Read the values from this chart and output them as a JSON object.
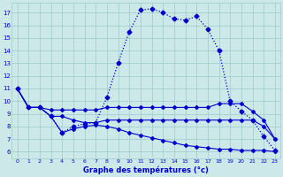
{
  "title": "Graphe des températures (°c)",
  "bg_color": "#cce8e8",
  "grid_color": "#99cccc",
  "line_color": "#0000cc",
  "main_x": [
    0,
    1,
    2,
    3,
    4,
    5,
    6,
    7,
    8,
    9,
    10,
    11,
    12,
    13,
    14,
    15,
    16,
    17,
    18,
    19,
    20,
    21,
    22,
    23
  ],
  "main_y": [
    11.0,
    9.5,
    9.5,
    8.8,
    7.5,
    8.0,
    8.2,
    8.3,
    10.3,
    13.0,
    15.5,
    17.2,
    17.3,
    17.0,
    16.5,
    16.4,
    16.7,
    15.7,
    14.0,
    10.0,
    9.2,
    8.5,
    7.2,
    6.1
  ],
  "line2_x": [
    0,
    1,
    2,
    3,
    4,
    5,
    6,
    7,
    8,
    9,
    10,
    11,
    12,
    13,
    14,
    15,
    16,
    17,
    18,
    19,
    20,
    21,
    22,
    23
  ],
  "line2_y": [
    11.0,
    9.5,
    9.5,
    9.3,
    9.3,
    9.3,
    9.3,
    9.3,
    9.5,
    9.5,
    9.5,
    9.5,
    9.5,
    9.5,
    9.5,
    9.5,
    9.5,
    9.5,
    9.8,
    9.8,
    9.8,
    9.2,
    8.5,
    7.0
  ],
  "line3_x": [
    0,
    1,
    2,
    3,
    4,
    5,
    6,
    7,
    8,
    9,
    10,
    11,
    12,
    13,
    14,
    15,
    16,
    17,
    18,
    19,
    20,
    21,
    22,
    23
  ],
  "line3_y": [
    11.0,
    9.5,
    9.5,
    8.8,
    8.8,
    8.5,
    8.3,
    8.3,
    8.5,
    8.5,
    8.5,
    8.5,
    8.5,
    8.5,
    8.5,
    8.5,
    8.5,
    8.5,
    8.5,
    8.5,
    8.5,
    8.5,
    8.0,
    7.0
  ],
  "line4_x": [
    0,
    1,
    2,
    3,
    4,
    5,
    6,
    7,
    8,
    9,
    10,
    11,
    12,
    13,
    14,
    15,
    16,
    17,
    18,
    19,
    20,
    21,
    22,
    23
  ],
  "line4_y": [
    11.0,
    9.5,
    9.5,
    8.8,
    7.5,
    7.8,
    8.0,
    8.1,
    8.0,
    7.8,
    7.5,
    7.3,
    7.1,
    6.9,
    6.7,
    6.5,
    6.4,
    6.3,
    6.2,
    6.2,
    6.1,
    6.1,
    6.1,
    6.0
  ],
  "ylim": [
    5.5,
    17.8
  ],
  "xlim": [
    -0.5,
    23.5
  ],
  "yticks": [
    6,
    7,
    8,
    9,
    10,
    11,
    12,
    13,
    14,
    15,
    16,
    17
  ],
  "xticks": [
    0,
    1,
    2,
    3,
    4,
    5,
    6,
    7,
    8,
    9,
    10,
    11,
    12,
    13,
    14,
    15,
    16,
    17,
    18,
    19,
    20,
    21,
    22,
    23
  ]
}
